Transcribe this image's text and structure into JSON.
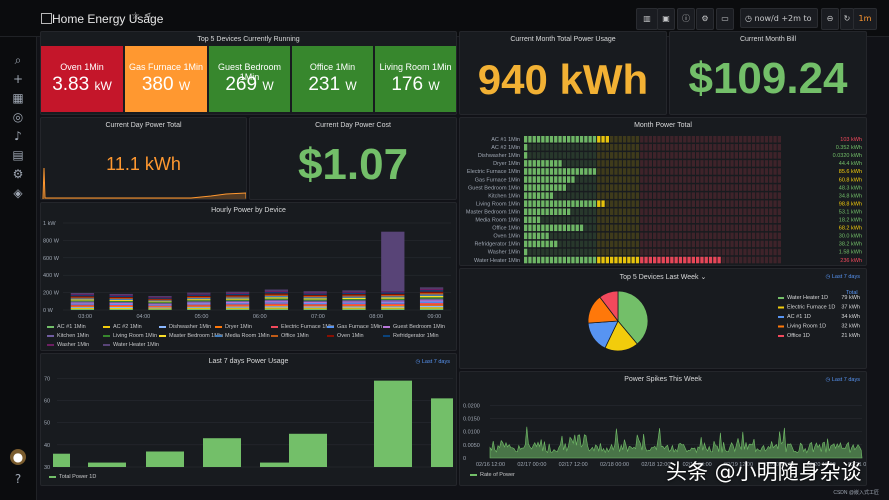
{
  "header": {
    "title": "Home Energy Usage",
    "time_range": "now/d +2m to now",
    "refresh": "1m"
  },
  "stats_top5": {
    "title": "Top 5 Devices Currently Running",
    "items": [
      {
        "label": "Oven 1Min",
        "value": "3.83",
        "unit": "kW",
        "color": "#c4162a"
      },
      {
        "label": "Gas Furnace 1Min",
        "value": "380",
        "unit": "W",
        "color": "#ff9830"
      },
      {
        "label": "Guest Bedroom 1Min",
        "value": "269",
        "unit": "W",
        "color": "#37872d"
      },
      {
        "label": "Office 1Min",
        "value": "231",
        "unit": "W",
        "color": "#37872d"
      },
      {
        "label": "Living Room 1Min",
        "value": "176",
        "unit": "W",
        "color": "#37872d"
      }
    ]
  },
  "month_usage": {
    "title": "Current Month Total Power Usage",
    "value": "940 kWh",
    "color": "#f2b134"
  },
  "month_bill": {
    "title": "Current Month Bill",
    "value": "$109.24",
    "color": "#73bf69"
  },
  "day_total": {
    "title": "Current Day Power Total",
    "value": "11.1 kWh",
    "color": "#ff9830"
  },
  "day_cost": {
    "title": "Current Day Power Cost",
    "value": "$1.07",
    "color": "#73bf69"
  },
  "hourly": {
    "title": "Hourly Power by Device"
  },
  "month_total": {
    "title": "Month Power Total"
  },
  "top5_week": {
    "title": "Top 5 Devices Last Week",
    "badge": "Last 7 days",
    "total_header": "Total"
  },
  "last7": {
    "title": "Last 7 days Power Usage",
    "badge": "Last 7 days",
    "legend": "Total Power 1D"
  },
  "spikes": {
    "title": "Power Spikes This Week",
    "badge": "Last 7 days",
    "legend": "Rate of Power"
  },
  "watermark": "头条 @小明随身杂谈",
  "credit": "CSDN @嵌入式工匠",
  "chart_data": [
    {
      "type": "bar",
      "name": "hourly",
      "xlabel": "",
      "ylabel": "",
      "x_ticks": [
        "03:00",
        "04:00",
        "05:00",
        "06:00",
        "07:00",
        "08:00",
        "09:00"
      ],
      "y_ticks": [
        "0 W",
        "200 W",
        "400 W",
        "600 W",
        "800 W",
        "1 kW"
      ],
      "ylim": [
        0,
        1000
      ],
      "totals": [
        195,
        185,
        160,
        200,
        210,
        235,
        215,
        225,
        900,
        260
      ],
      "seg_colors": [
        "#73bf69",
        "#f2cc0c",
        "#8ab8ff",
        "#ff780a",
        "#f2495c",
        "#5794f2",
        "#b877d9",
        "#705da0",
        "#37872d",
        "#fade2a",
        "#447ebc",
        "#c15c17",
        "#890f02",
        "#0a437c",
        "#6d1f62",
        "#584477"
      ],
      "legend": [
        {
          "name": "AC #1 1Min",
          "color": "#73bf69"
        },
        {
          "name": "AC #2 1Min",
          "color": "#f2cc0c"
        },
        {
          "name": "Dishwasher 1Min",
          "color": "#8ab8ff"
        },
        {
          "name": "Dryer 1Min",
          "color": "#ff780a"
        },
        {
          "name": "Electric Furnace 1Min",
          "color": "#f2495c"
        },
        {
          "name": "Gas Furnace 1Min",
          "color": "#5794f2"
        },
        {
          "name": "Guest Bedroom 1Min",
          "color": "#b877d9"
        },
        {
          "name": "Kitchen 1Min",
          "color": "#705da0"
        },
        {
          "name": "Living Room 1Min",
          "color": "#37872d"
        },
        {
          "name": "Master Bedroom 1Min",
          "color": "#fade2a"
        },
        {
          "name": "Media Room 1Min",
          "color": "#447ebc"
        },
        {
          "name": "Office 1Min",
          "color": "#c15c17"
        },
        {
          "name": "Oven 1Min",
          "color": "#890f02"
        },
        {
          "name": "Refridgerator 1Min",
          "color": "#0a437c"
        },
        {
          "name": "Washer 1Min",
          "color": "#6d1f62"
        },
        {
          "name": "Water Heater 1Min",
          "color": "#584477"
        }
      ]
    },
    {
      "type": "heatmap",
      "name": "month_power",
      "rows": [
        {
          "label": "AC #1 1Min",
          "value": "103 kWh",
          "color": "#f2495c"
        },
        {
          "label": "AC #2 1Min",
          "value": "0.352 kWh",
          "color": "#73bf69"
        },
        {
          "label": "Dishwasher 1Min",
          "value": "0.0320 kWh",
          "color": "#73bf69"
        },
        {
          "label": "Dryer 1Min",
          "value": "44.4 kWh",
          "color": "#73bf69"
        },
        {
          "label": "Electric Furnace 1Min",
          "value": "85.6 kWh",
          "color": "#f2cc0c"
        },
        {
          "label": "Gas Furnace 1Min",
          "value": "60.8 kWh",
          "color": "#f2cc0c"
        },
        {
          "label": "Guest Bedroom 1Min",
          "value": "48.3 kWh",
          "color": "#73bf69"
        },
        {
          "label": "Kitchen 1Min",
          "value": "34.8 kWh",
          "color": "#73bf69"
        },
        {
          "label": "Living Room 1Min",
          "value": "98.8 kWh",
          "color": "#f2cc0c"
        },
        {
          "label": "Master Bedroom 1Min",
          "value": "53.1 kWh",
          "color": "#73bf69"
        },
        {
          "label": "Media Room 1Min",
          "value": "18.2 kWh",
          "color": "#73bf69"
        },
        {
          "label": "Office 1Min",
          "value": "68.2 kWh",
          "color": "#f2cc0c"
        },
        {
          "label": "Oven 1Min",
          "value": "30.0 kWh",
          "color": "#73bf69"
        },
        {
          "label": "Refridgerator 1Min",
          "value": "38.2 kWh",
          "color": "#73bf69"
        },
        {
          "label": "Washer 1Min",
          "value": "1.58 kWh",
          "color": "#73bf69"
        },
        {
          "label": "Water Heater 1Min",
          "value": "236 kWh",
          "color": "#f2495c"
        }
      ],
      "fill_cells": [
        20,
        1,
        1,
        9,
        17,
        12,
        10,
        7,
        19,
        11,
        4,
        14,
        6,
        8,
        1,
        46
      ]
    },
    {
      "type": "pie",
      "name": "top5_week",
      "slices": [
        {
          "name": "Water Heater 1D",
          "value": 79,
          "label": "79 kWh",
          "color": "#73bf69"
        },
        {
          "name": "Electric Furnace 1D",
          "value": 37,
          "label": "37 kWh",
          "color": "#f2cc0c"
        },
        {
          "name": "AC #1 1D",
          "value": 34,
          "label": "34 kWh",
          "color": "#5794f2"
        },
        {
          "name": "Living Room 1D",
          "value": 32,
          "label": "32 kWh",
          "color": "#ff780a"
        },
        {
          "name": "Office 1D",
          "value": 21,
          "label": "21 kWh",
          "color": "#f2495c"
        }
      ]
    },
    {
      "type": "bar",
      "name": "last7",
      "values": [
        36,
        32,
        37,
        43,
        32,
        45,
        69,
        61
      ],
      "ylim": [
        30,
        72
      ],
      "y_ticks": [
        "30",
        "40",
        "50",
        "60",
        "70"
      ]
    },
    {
      "type": "area",
      "name": "spikes",
      "x_ticks": [
        "02/16 12:00",
        "02/17 00:00",
        "02/17 12:00",
        "02/18 00:00",
        "02/18 12:00",
        "02/19 00:00",
        "02/19 12:00",
        "02/20 00:00",
        "02/20 12:00",
        "02/21 00:00"
      ],
      "y_ticks": [
        "0",
        "0.0050",
        "0.0100",
        "0.0150",
        "0.0200"
      ],
      "ylim": [
        0,
        0.022
      ]
    }
  ]
}
